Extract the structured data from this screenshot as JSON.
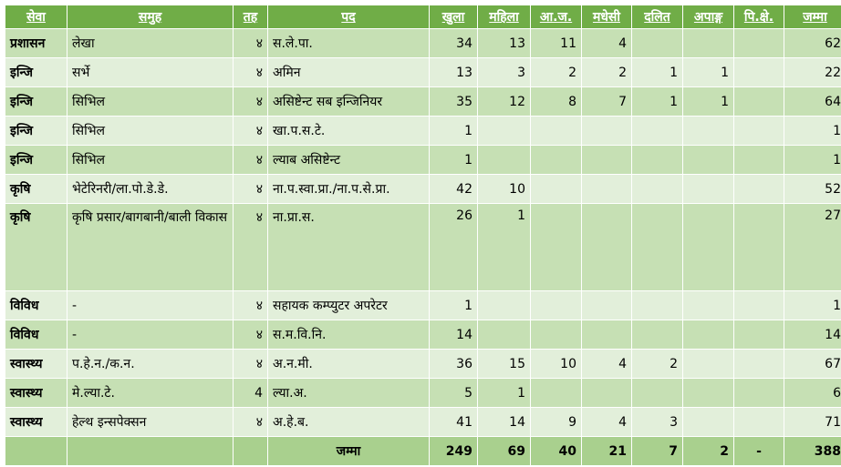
{
  "table": {
    "headers": [
      "सेवा",
      "समुह",
      "तह",
      "पद",
      "खुला",
      "महिला",
      "आ.ज.",
      "मधेसी",
      "दलित",
      "अपाङ्ग",
      "पि.क्षे.",
      "जम्मा"
    ],
    "rows": [
      {
        "seva": "प्रशासन",
        "samuh": "लेखा",
        "tah": "४",
        "pad": "स.ले.पा.",
        "khula": "34",
        "mahila": "13",
        "aaja": "11",
        "madhesi": "4",
        "dalit": "",
        "apanga": "",
        "pikshe": "",
        "jamma": "62"
      },
      {
        "seva": "इन्जि",
        "samuh": "सर्भे",
        "tah": "४",
        "pad": "अमिन",
        "khula": "13",
        "mahila": "3",
        "aaja": "2",
        "madhesi": "2",
        "dalit": "1",
        "apanga": "1",
        "pikshe": "",
        "jamma": "22"
      },
      {
        "seva": "इन्जि",
        "samuh": "सिभिल",
        "tah": "४",
        "pad": "असिष्टेन्ट सब इन्जिनियर",
        "khula": "35",
        "mahila": "12",
        "aaja": "8",
        "madhesi": "7",
        "dalit": "1",
        "apanga": "1",
        "pikshe": "",
        "jamma": "64"
      },
      {
        "seva": "इन्जि",
        "samuh": "सिभिल",
        "tah": "४",
        "pad": "खा.प.स.टे.",
        "khula": "1",
        "mahila": "",
        "aaja": "",
        "madhesi": "",
        "dalit": "",
        "apanga": "",
        "pikshe": "",
        "jamma": "1"
      },
      {
        "seva": "इन्जि",
        "samuh": "सिभिल",
        "tah": "४",
        "pad": "ल्याब असिष्टेन्ट",
        "khula": "1",
        "mahila": "",
        "aaja": "",
        "madhesi": "",
        "dalit": "",
        "apanga": "",
        "pikshe": "",
        "jamma": "1"
      },
      {
        "seva": "कृषि",
        "samuh": "भेटेरिनरी/ला.पो.डे.डे.",
        "tah": "४",
        "pad": "ना.प.स्वा.प्रा./ना.प.से.प्रा.",
        "khula": "42",
        "mahila": "10",
        "aaja": "",
        "madhesi": "",
        "dalit": "",
        "apanga": "",
        "pikshe": "",
        "jamma": "52"
      },
      {
        "seva": "कृषि",
        "samuh": "कृषि प्रसार/बागबानी/बाली विकास",
        "tah": "४",
        "pad": "ना.प्रा.स.",
        "khula": "26",
        "mahila": "1",
        "aaja": "",
        "madhesi": "",
        "dalit": "",
        "apanga": "",
        "pikshe": "",
        "jamma": "27"
      },
      {
        "seva": "विविध",
        "samuh": "-",
        "tah": "४",
        "pad": "सहायक कम्प्युटर अपरेटर",
        "khula": "1",
        "mahila": "",
        "aaja": "",
        "madhesi": "",
        "dalit": "",
        "apanga": "",
        "pikshe": "",
        "jamma": "1"
      },
      {
        "seva": "विविध",
        "samuh": "-",
        "tah": "४",
        "pad": "स.म.वि.नि.",
        "khula": "14",
        "mahila": "",
        "aaja": "",
        "madhesi": "",
        "dalit": "",
        "apanga": "",
        "pikshe": "",
        "jamma": "14"
      },
      {
        "seva": "स्वास्थ्य",
        "samuh": "प.हे.न./क.न.",
        "tah": "४",
        "pad": "अ.न.मी.",
        "khula": "36",
        "mahila": "15",
        "aaja": "10",
        "madhesi": "4",
        "dalit": "2",
        "apanga": "",
        "pikshe": "",
        "jamma": "67"
      },
      {
        "seva": "स्वास्थ्य",
        "samuh": "मे.ल्या.टे.",
        "tah": "4",
        "pad": "ल्या.अ.",
        "khula": "5",
        "mahila": "1",
        "aaja": "",
        "madhesi": "",
        "dalit": "",
        "apanga": "",
        "pikshe": "",
        "jamma": "6"
      },
      {
        "seva": "स्वास्थ्य",
        "samuh": "हेल्थ इन्सपेक्सन",
        "tah": "४",
        "pad": "अ.हे.ब.",
        "khula": "41",
        "mahila": "14",
        "aaja": "9",
        "madhesi": "4",
        "dalit": "3",
        "apanga": "",
        "pikshe": "",
        "jamma": "71"
      }
    ],
    "total": {
      "label": "जम्मा",
      "khula": "249",
      "mahila": "69",
      "aaja": "40",
      "madhesi": "21",
      "dalit": "7",
      "apanga": "2",
      "pikshe": "-",
      "jamma": "388"
    }
  },
  "colors": {
    "header": "#70ad47",
    "row_dark": "#c6e0b4",
    "row_light": "#e2efda",
    "total": "#a9d08e"
  }
}
